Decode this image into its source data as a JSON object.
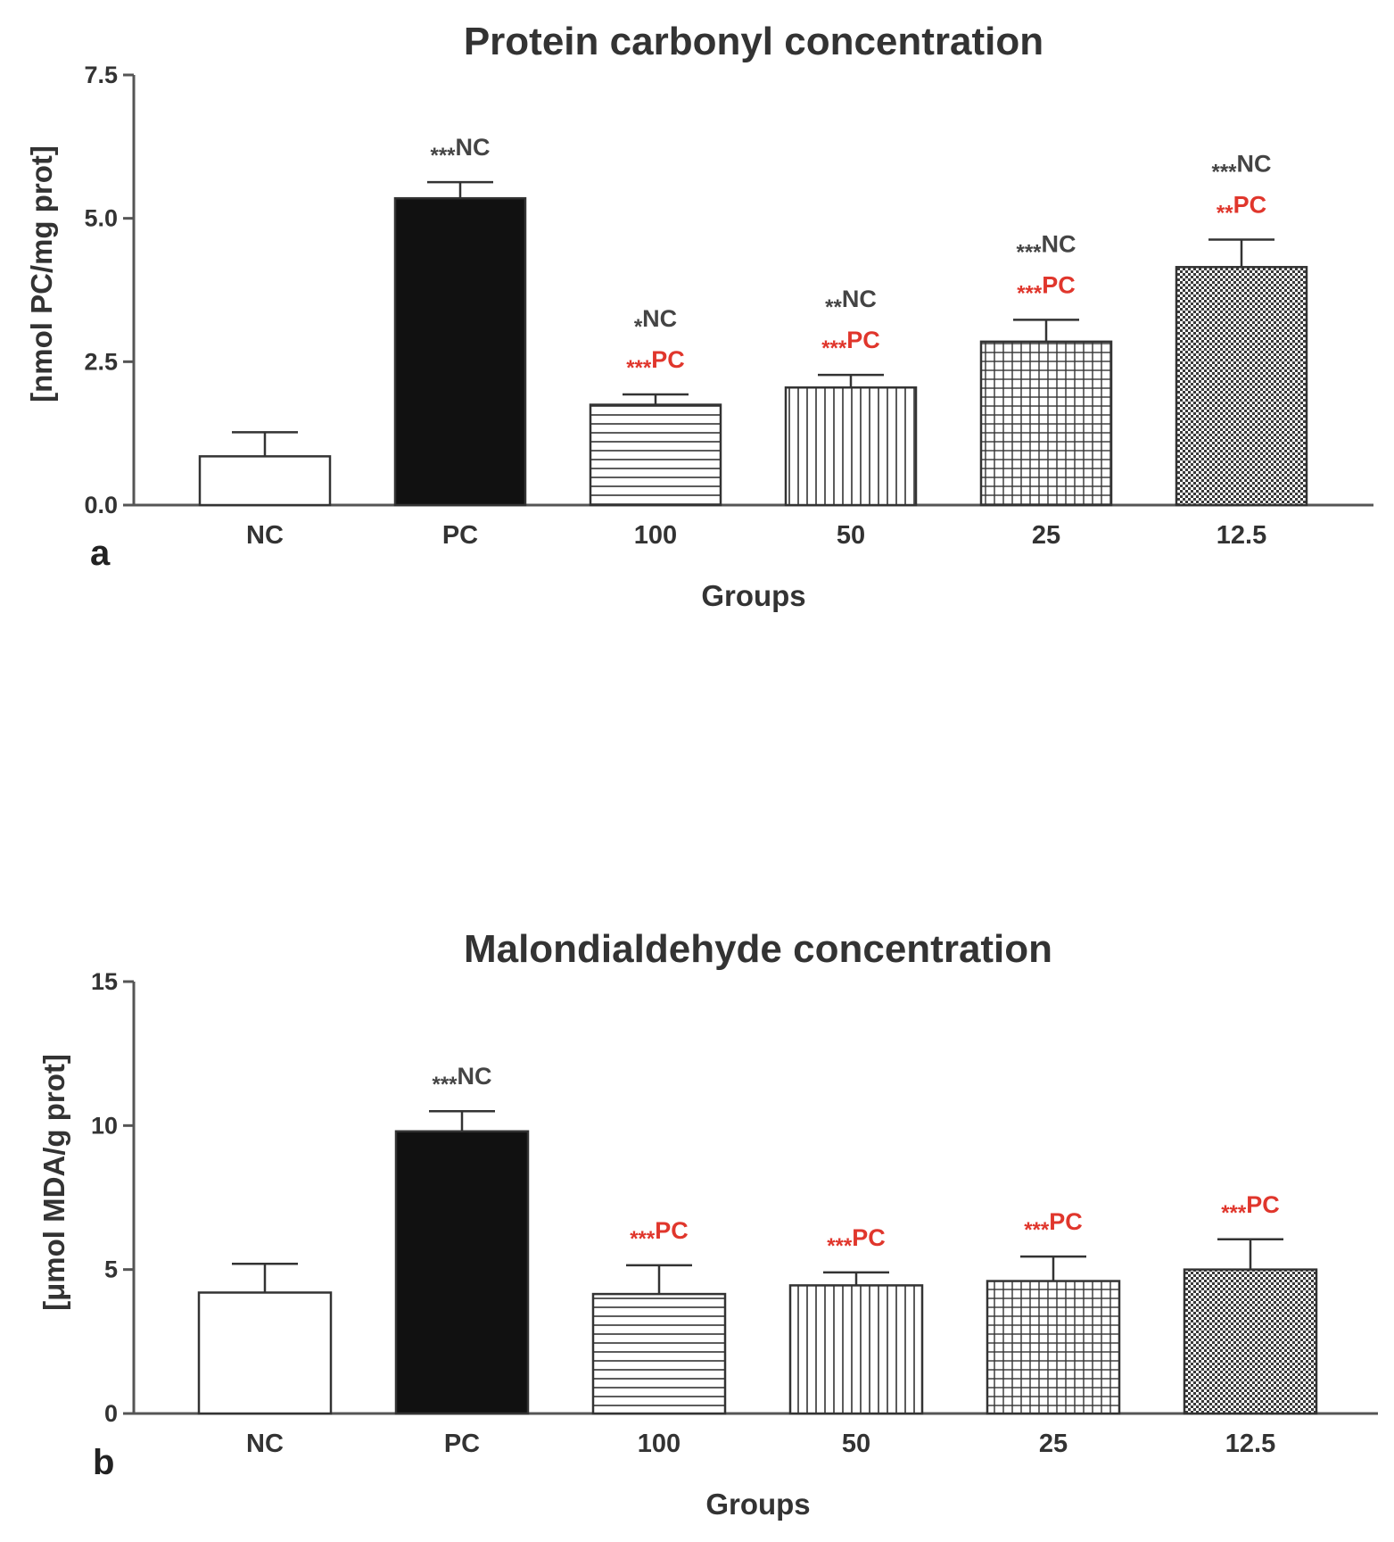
{
  "colors": {
    "axis": "#555555",
    "text": "#333333",
    "nc_annotation": "#444444",
    "pc_annotation": "#e0362c",
    "bar_outline": "#333333",
    "pc_bar_fill": "#111111"
  },
  "chart_data": [
    {
      "panel": "a",
      "type": "bar",
      "title": "Protein carbonyl concentration",
      "xlabel": "Groups",
      "ylabel": "[nmol PC/mg prot]",
      "ylim": [
        0,
        7.5
      ],
      "yticks": [
        "0.0",
        "2.5",
        "5.0",
        "7.5"
      ],
      "categories": [
        "NC",
        "PC",
        "100",
        "50",
        "25",
        "12.5"
      ],
      "values": [
        0.85,
        5.35,
        1.75,
        2.05,
        2.85,
        4.15
      ],
      "errors": [
        0.42,
        0.28,
        0.18,
        0.22,
        0.38,
        0.48
      ],
      "fill_patterns": [
        "white",
        "black",
        "horizontal-lines",
        "vertical-lines",
        "grid",
        "dense-dots"
      ],
      "annotations": [
        [],
        [
          {
            "stars": "***",
            "label": "NC",
            "ref": "nc"
          }
        ],
        [
          {
            "stars": "*",
            "label": "NC",
            "ref": "nc"
          },
          {
            "stars": "***",
            "label": "PC",
            "ref": "pc"
          }
        ],
        [
          {
            "stars": "**",
            "label": "NC",
            "ref": "nc"
          },
          {
            "stars": "***",
            "label": "PC",
            "ref": "pc"
          }
        ],
        [
          {
            "stars": "***",
            "label": "NC",
            "ref": "nc"
          },
          {
            "stars": "***",
            "label": "PC",
            "ref": "pc"
          }
        ],
        [
          {
            "stars": "***",
            "label": "NC",
            "ref": "nc"
          },
          {
            "stars": "**",
            "label": "PC",
            "ref": "pc"
          }
        ]
      ]
    },
    {
      "panel": "b",
      "type": "bar",
      "title": "Malondialdehyde concentration",
      "xlabel": "Groups",
      "ylabel": "[μmol MDA/g prot]",
      "ylim": [
        0,
        15
      ],
      "yticks": [
        "0",
        "5",
        "10",
        "15"
      ],
      "categories": [
        "NC",
        "PC",
        "100",
        "50",
        "25",
        "12.5"
      ],
      "values": [
        4.2,
        9.8,
        4.15,
        4.45,
        4.6,
        5.0
      ],
      "errors": [
        1.0,
        0.7,
        1.0,
        0.45,
        0.85,
        1.05
      ],
      "fill_patterns": [
        "white",
        "black",
        "horizontal-lines",
        "vertical-lines",
        "grid",
        "dense-dots"
      ],
      "annotations": [
        [],
        [
          {
            "stars": "***",
            "label": "NC",
            "ref": "nc"
          }
        ],
        [
          {
            "stars": "***",
            "label": "PC",
            "ref": "pc"
          }
        ],
        [
          {
            "stars": "***",
            "label": "PC",
            "ref": "pc"
          }
        ],
        [
          {
            "stars": "***",
            "label": "PC",
            "ref": "pc"
          }
        ],
        [
          {
            "stars": "***",
            "label": "PC",
            "ref": "pc"
          }
        ]
      ]
    }
  ]
}
